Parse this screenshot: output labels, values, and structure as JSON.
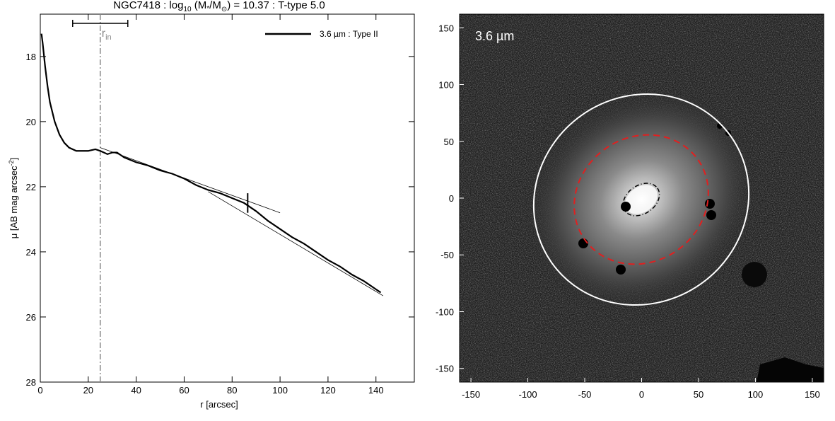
{
  "chart_data": [
    {
      "type": "line",
      "title_parts": [
        "NGC7418 : log",
        "10",
        " (M",
        "*",
        "/M",
        "⊙",
        ") = 10.37 : T-type 5.0"
      ],
      "xlabel": "r [arcsec]",
      "ylabel_parts": [
        "μ [AB mag arcsec",
        "-2",
        "]"
      ],
      "xlim": [
        0,
        156
      ],
      "ylim": [
        28,
        16.7
      ],
      "xticks": [
        0,
        20,
        40,
        60,
        80,
        100,
        120,
        140
      ],
      "yticks": [
        18,
        20,
        22,
        24,
        26,
        28
      ],
      "legend": "upper right",
      "x": [
        0.5,
        1,
        2,
        3,
        4,
        6,
        8,
        10,
        12,
        15,
        20,
        23,
        25,
        28,
        30,
        32,
        35,
        40,
        45,
        50,
        55,
        60,
        65,
        70,
        75,
        80,
        85,
        90,
        95,
        100,
        105,
        110,
        115,
        120,
        125,
        130,
        135,
        140,
        142
      ],
      "series": [
        {
          "name": "3.6 µm : Type II",
          "color": "#000000",
          "values": [
            17.3,
            17.6,
            18.3,
            18.9,
            19.4,
            20.0,
            20.4,
            20.65,
            20.8,
            20.9,
            20.9,
            20.85,
            20.9,
            21.0,
            20.95,
            20.95,
            21.1,
            21.25,
            21.35,
            21.5,
            21.6,
            21.75,
            21.95,
            22.1,
            22.2,
            22.35,
            22.5,
            22.75,
            23.05,
            23.3,
            23.55,
            23.75,
            24.0,
            24.25,
            24.45,
            24.7,
            24.9,
            25.15,
            25.25
          ]
        }
      ],
      "fits": [
        {
          "x": [
            25,
            100
          ],
          "values": [
            20.8,
            22.8
          ]
        },
        {
          "x": [
            70,
            143
          ],
          "values": [
            22.15,
            25.35
          ]
        }
      ],
      "r_in": 25,
      "r_in_label": [
        "r",
        "in"
      ],
      "r_in_range": [
        13.5,
        36.5
      ],
      "break_r": 86.5,
      "break_mu": [
        22.2,
        22.8
      ]
    },
    {
      "type": "image",
      "label": "3.6 µm",
      "xlim": [
        -160,
        160
      ],
      "ylim": [
        -162,
        162
      ],
      "xticks": [
        -150,
        -100,
        -50,
        0,
        50,
        100,
        150
      ],
      "yticks": [
        -150,
        -100,
        -50,
        0,
        50,
        100,
        150
      ]
    }
  ]
}
